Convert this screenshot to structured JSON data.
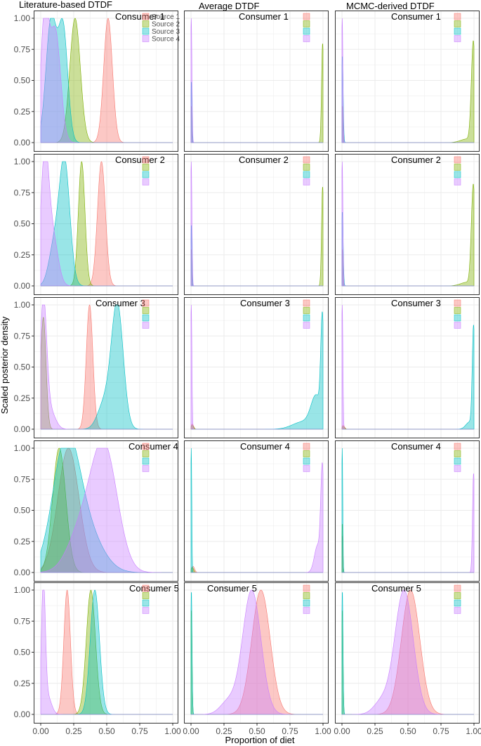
{
  "figure": {
    "ylabel": "Scaled posterior density",
    "xlabel": "Proportion of diet",
    "column_titles": [
      "Literature-based DTDF",
      "Average DTDF",
      "MCMC-derived DTDF"
    ],
    "row_titles": [
      "Consumer 1",
      "Consumer 2",
      "Consumer 3",
      "Consumer 4",
      "Consumer 5"
    ],
    "legend_labels": [
      "Source 1",
      "Source 2",
      "Source 3",
      "Source 4"
    ],
    "x_tick_labels": [
      "0.00",
      "0.25",
      "0.50",
      "0.75",
      "1.00"
    ],
    "y_tick_labels": [
      "0.00",
      "0.25",
      "0.50",
      "0.75",
      "1.00"
    ]
  },
  "colors": {
    "source1": "#f8766d",
    "source2": "#7cae00",
    "source3": "#00bfc4",
    "source4": "#c77cff",
    "grid": "#ebebeb",
    "frame": "#333333",
    "text": "#000000",
    "tick_text": "#4d4d4d"
  },
  "chart_data": {
    "type": "area",
    "description_type": "faceted scaled posterior density curves, 5 consumers x 3 DTDF methods",
    "x_range": [
      0,
      1
    ],
    "y_range": [
      0,
      1
    ],
    "series_names": [
      "Source 1",
      "Source 2",
      "Source 3",
      "Source 4"
    ],
    "panels": [
      {
        "row": 0,
        "col": 0,
        "title": "Consumer 1",
        "legend_labels_shown": true,
        "series": [
          {
            "name": "Source 1",
            "peaks": [
              [
                0.51,
                0.033,
                1.0
              ]
            ]
          },
          {
            "name": "Source 2",
            "peaks": [
              [
                0.26,
                0.04,
                1.0
              ]
            ]
          },
          {
            "name": "Source 3",
            "peaks": [
              [
                0.08,
                0.04,
                1.0
              ],
              [
                0.17,
                0.035,
                0.9
              ]
            ]
          },
          {
            "name": "Source 4",
            "peaks": [
              [
                0.03,
                0.03,
                1.0
              ],
              [
                0.11,
                0.04,
                0.9
              ]
            ]
          }
        ]
      },
      {
        "row": 0,
        "col": 1,
        "title": "Consumer 1",
        "series": [
          {
            "name": "Source 1",
            "peaks": [
              [
                0.003,
                0.004,
                0.3
              ]
            ]
          },
          {
            "name": "Source 2",
            "peaks": [
              [
                0.997,
                0.008,
                0.8
              ]
            ]
          },
          {
            "name": "Source 3",
            "peaks": [
              [
                0.003,
                0.004,
                0.5
              ]
            ]
          },
          {
            "name": "Source 4",
            "peaks": [
              [
                0.002,
                0.005,
                1.0
              ]
            ]
          }
        ]
      },
      {
        "row": 0,
        "col": 2,
        "title": "Consumer 1",
        "series": [
          {
            "name": "Source 1",
            "peaks": [
              [
                0.003,
                0.004,
                0.3
              ]
            ]
          },
          {
            "name": "Source 2",
            "peaks": [
              [
                0.995,
                0.015,
                0.8
              ],
              [
                0.95,
                0.05,
                0.03
              ]
            ]
          },
          {
            "name": "Source 3",
            "peaks": [
              [
                0.003,
                0.006,
                0.7
              ]
            ]
          },
          {
            "name": "Source 4",
            "peaks": [
              [
                0.002,
                0.005,
                1.0
              ]
            ]
          }
        ]
      },
      {
        "row": 1,
        "col": 0,
        "title": "Consumer 2",
        "series": [
          {
            "name": "Source 1",
            "peaks": [
              [
                0.46,
                0.03,
                1.0
              ]
            ]
          },
          {
            "name": "Source 2",
            "peaks": [
              [
                0.31,
                0.025,
                1.0
              ]
            ]
          },
          {
            "name": "Source 3",
            "peaks": [
              [
                0.18,
                0.04,
                1.0
              ],
              [
                0.1,
                0.04,
                0.3
              ]
            ]
          },
          {
            "name": "Source 4",
            "peaks": [
              [
                0.03,
                0.03,
                1.0
              ],
              [
                0.09,
                0.04,
                0.4
              ]
            ]
          }
        ]
      },
      {
        "row": 1,
        "col": 1,
        "title": "Consumer 2",
        "series": [
          {
            "name": "Source 1",
            "peaks": [
              [
                0.003,
                0.004,
                0.3
              ]
            ]
          },
          {
            "name": "Source 2",
            "peaks": [
              [
                0.997,
                0.008,
                0.8
              ]
            ]
          },
          {
            "name": "Source 3",
            "peaks": [
              [
                0.003,
                0.004,
                0.5
              ]
            ]
          },
          {
            "name": "Source 4",
            "peaks": [
              [
                0.002,
                0.005,
                1.0
              ]
            ]
          }
        ]
      },
      {
        "row": 1,
        "col": 2,
        "title": "Consumer 2",
        "series": [
          {
            "name": "Source 1",
            "peaks": [
              [
                0.003,
                0.004,
                0.3
              ]
            ]
          },
          {
            "name": "Source 2",
            "peaks": [
              [
                0.995,
                0.015,
                0.8
              ],
              [
                0.95,
                0.05,
                0.03
              ]
            ]
          },
          {
            "name": "Source 3",
            "peaks": [
              [
                0.003,
                0.006,
                0.6
              ]
            ]
          },
          {
            "name": "Source 4",
            "peaks": [
              [
                0.002,
                0.005,
                1.0
              ]
            ]
          }
        ]
      },
      {
        "row": 2,
        "col": 0,
        "title": "Consumer 3",
        "series": [
          {
            "name": "Source 1",
            "peaks": [
              [
                0.37,
                0.025,
                1.0
              ]
            ]
          },
          {
            "name": "Source 2",
            "peaks": [
              [
                0.02,
                0.02,
                0.9
              ]
            ]
          },
          {
            "name": "Source 3",
            "peaks": [
              [
                0.58,
                0.045,
                1.0
              ],
              [
                0.48,
                0.05,
                0.2
              ]
            ]
          },
          {
            "name": "Source 4",
            "peaks": [
              [
                0.02,
                0.025,
                1.0
              ],
              [
                0.07,
                0.04,
                0.15
              ]
            ]
          }
        ]
      },
      {
        "row": 2,
        "col": 1,
        "title": "Consumer 3",
        "series": [
          {
            "name": "Source 1",
            "peaks": [
              [
                0.01,
                0.01,
                0.04
              ]
            ]
          },
          {
            "name": "Source 2",
            "peaks": [
              [
                0.01,
                0.01,
                0.03
              ]
            ]
          },
          {
            "name": "Source 3",
            "peaks": [
              [
                0.995,
                0.012,
                0.8
              ],
              [
                0.95,
                0.04,
                0.25
              ],
              [
                0.85,
                0.08,
                0.06
              ]
            ]
          },
          {
            "name": "Source 4",
            "peaks": [
              [
                0.002,
                0.005,
                1.0
              ]
            ]
          }
        ]
      },
      {
        "row": 2,
        "col": 2,
        "title": "Consumer 3",
        "series": [
          {
            "name": "Source 1",
            "peaks": [
              [
                0.01,
                0.01,
                0.03
              ]
            ]
          },
          {
            "name": "Source 2",
            "peaks": [
              [
                0.01,
                0.01,
                0.02
              ]
            ]
          },
          {
            "name": "Source 3",
            "peaks": [
              [
                0.997,
                0.01,
                0.8
              ],
              [
                0.97,
                0.03,
                0.06
              ]
            ]
          },
          {
            "name": "Source 4",
            "peaks": [
              [
                0.002,
                0.005,
                1.0
              ]
            ]
          }
        ]
      },
      {
        "row": 3,
        "col": 0,
        "title": "Consumer 4",
        "series": [
          {
            "name": "Source 1",
            "peaks": [
              [
                0.21,
                0.08,
                1.0
              ]
            ]
          },
          {
            "name": "Source 2",
            "peaks": [
              [
                0.14,
                0.05,
                1.0
              ]
            ]
          },
          {
            "name": "Source 3",
            "peaks": [
              [
                0.19,
                0.1,
                1.0
              ],
              [
                0.35,
                0.12,
                0.3
              ]
            ]
          },
          {
            "name": "Source 4",
            "peaks": [
              [
                0.48,
                0.1,
                1.0
              ],
              [
                0.3,
                0.1,
                0.3
              ]
            ]
          }
        ]
      },
      {
        "row": 3,
        "col": 1,
        "title": "Consumer 4",
        "series": [
          {
            "name": "Source 1",
            "peaks": [
              [
                0.015,
                0.012,
                0.05
              ]
            ]
          },
          {
            "name": "Source 2",
            "peaks": [
              [
                0.01,
                0.01,
                0.04
              ]
            ]
          },
          {
            "name": "Source 3",
            "peaks": [
              [
                0.002,
                0.004,
                1.0
              ]
            ]
          },
          {
            "name": "Source 4",
            "peaks": [
              [
                0.995,
                0.012,
                0.8
              ],
              [
                0.96,
                0.025,
                0.22
              ]
            ]
          }
        ]
      },
      {
        "row": 3,
        "col": 2,
        "title": "Consumer 4",
        "series": [
          {
            "name": "Source 1",
            "peaks": [
              [
                0.003,
                0.004,
                0.3
              ]
            ]
          },
          {
            "name": "Source 2",
            "peaks": [
              [
                0.003,
                0.004,
                0.4
              ]
            ]
          },
          {
            "name": "Source 3",
            "peaks": [
              [
                0.002,
                0.004,
                1.0
              ]
            ]
          },
          {
            "name": "Source 4",
            "peaks": [
              [
                0.997,
                0.008,
                0.8
              ]
            ]
          }
        ]
      },
      {
        "row": 4,
        "col": 0,
        "title": "Consumer 5",
        "series": [
          {
            "name": "Source 1",
            "peaks": [
              [
                0.2,
                0.025,
                1.0
              ]
            ]
          },
          {
            "name": "Source 2",
            "peaks": [
              [
                0.38,
                0.035,
                1.0
              ]
            ]
          },
          {
            "name": "Source 3",
            "peaks": [
              [
                0.41,
                0.035,
                1.0
              ]
            ]
          },
          {
            "name": "Source 4",
            "peaks": [
              [
                0.02,
                0.015,
                1.0
              ],
              [
                0.05,
                0.03,
                0.15
              ]
            ]
          }
        ]
      },
      {
        "row": 4,
        "col": 1,
        "title": "Consumer 5",
        "series": [
          {
            "name": "Source 1",
            "peaks": [
              [
                0.53,
                0.07,
                1.0
              ]
            ]
          },
          {
            "name": "Source 2",
            "peaks": [
              [
                0.003,
                0.005,
                0.85
              ]
            ]
          },
          {
            "name": "Source 3",
            "peaks": [
              [
                0.003,
                0.005,
                1.0
              ]
            ]
          },
          {
            "name": "Source 4",
            "peaks": [
              [
                0.46,
                0.07,
                1.0
              ],
              [
                0.28,
                0.06,
                0.1
              ]
            ]
          }
        ]
      },
      {
        "row": 4,
        "col": 2,
        "title": "Consumer 5",
        "series": [
          {
            "name": "Source 1",
            "peaks": [
              [
                0.52,
                0.07,
                1.0
              ]
            ]
          },
          {
            "name": "Source 2",
            "peaks": [
              [
                0.003,
                0.005,
                0.85
              ]
            ]
          },
          {
            "name": "Source 3",
            "peaks": [
              [
                0.003,
                0.005,
                1.0
              ]
            ]
          },
          {
            "name": "Source 4",
            "peaks": [
              [
                0.47,
                0.07,
                1.0
              ],
              [
                0.3,
                0.06,
                0.1
              ]
            ]
          }
        ]
      }
    ]
  }
}
